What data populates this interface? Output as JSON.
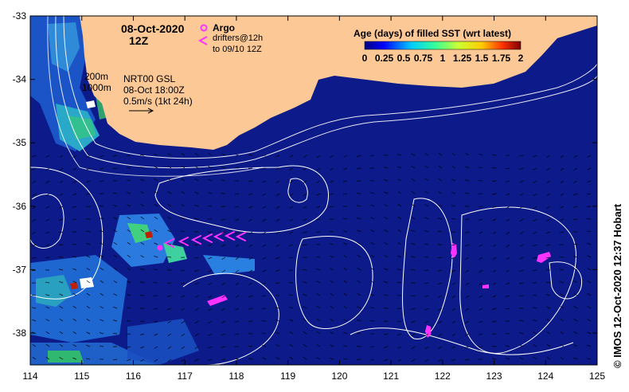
{
  "date_title": "08-Oct-2020",
  "time_title": "12Z",
  "argo_label": "Argo",
  "drifters_line1": "drifters@12h",
  "drifters_line2": "to 09/10 12Z",
  "legend_title": "Age (days) of filled SST (wrt latest)",
  "legend_ticks": [
    "0",
    "0.25",
    "0.5",
    "0.75",
    "1",
    "1.25",
    "1.5",
    "1.75",
    "2"
  ],
  "isobath_200": "200m",
  "isobath_1000": "1000m",
  "product_line1": "NRT00 GSL",
  "product_line2": "08-Oct 18:00Z",
  "product_line3": "0.5m/s (1kt 24h)",
  "credit": "© IMOS 12-Oct-2020 12:37 Hobart",
  "x_ticks": [
    "114",
    "115",
    "116",
    "117",
    "118",
    "119",
    "120",
    "121",
    "122",
    "123",
    "124",
    "125"
  ],
  "y_ticks": [
    "-33",
    "-34",
    "-35",
    "-36",
    "-37",
    "-38"
  ],
  "colors": {
    "ocean": "#0c1a8a",
    "land": "#fcc896",
    "argo": "#ff33ff",
    "contour": "#ffffff"
  }
}
